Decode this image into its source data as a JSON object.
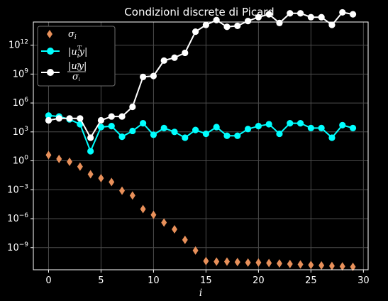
{
  "chart_data": {
    "type": "line",
    "title": "Condizioni discrete di Picard",
    "xlabel": "i",
    "ylabel": "",
    "y_scale": "log",
    "xlim": [
      -1.45,
      30.45
    ],
    "ylim_log10": [
      -11.3,
      14.4
    ],
    "grid": true,
    "legend_position": "top-left",
    "x_ticks": [
      0,
      5,
      10,
      15,
      20,
      25,
      30
    ],
    "y_ticks": [
      {
        "exp": 0,
        "label": "10^0"
      },
      {
        "exp": 3,
        "label": "10^3"
      },
      {
        "exp": 6,
        "label": "10^6"
      },
      {
        "exp": 9,
        "label": "10^9"
      },
      {
        "exp": 12,
        "label": "10^12"
      },
      {
        "exp": -3,
        "label": "10^-3"
      },
      {
        "exp": -6,
        "label": "10^-6"
      },
      {
        "exp": -9,
        "label": "10^-9"
      }
    ],
    "x": [
      0,
      1,
      2,
      3,
      4,
      5,
      6,
      7,
      8,
      9,
      10,
      11,
      12,
      13,
      14,
      15,
      16,
      17,
      18,
      19,
      20,
      21,
      22,
      23,
      24,
      25,
      26,
      27,
      28,
      29
    ],
    "series": [
      {
        "name": "σ_i",
        "marker": "diamond",
        "line": false,
        "color": "#e8905a",
        "log10_values": [
          0.6,
          0.2,
          -0.1,
          -0.6,
          -1.4,
          -1.8,
          -2.2,
          -3.1,
          -3.6,
          -5.0,
          -5.6,
          -6.4,
          -7.1,
          -8.2,
          -9.3,
          -10.4,
          -10.45,
          -10.45,
          -10.5,
          -10.55,
          -10.55,
          -10.6,
          -10.65,
          -10.7,
          -10.75,
          -10.8,
          -10.85,
          -10.9,
          -10.95,
          -11.0
        ]
      },
      {
        "name": "|u_i^T y|",
        "marker": "circle",
        "line": true,
        "color": "#00ffff",
        "log10_values": [
          4.7,
          4.6,
          4.3,
          3.8,
          1.0,
          3.5,
          3.6,
          2.5,
          3.1,
          3.9,
          2.7,
          3.4,
          3.0,
          2.4,
          3.2,
          2.8,
          3.5,
          2.6,
          2.6,
          3.3,
          3.6,
          3.8,
          2.8,
          3.9,
          3.9,
          3.4,
          3.4,
          2.4,
          3.7,
          3.4
        ]
      },
      {
        "name": "|u_i^T y| / σ_i",
        "marker": "circle",
        "line": true,
        "color": "#ffffff",
        "log10_values": [
          4.2,
          4.4,
          4.4,
          4.4,
          2.4,
          4.2,
          4.6,
          4.6,
          5.6,
          8.7,
          8.8,
          10.4,
          10.7,
          11.2,
          13.4,
          14.1,
          14.6,
          13.9,
          14.0,
          14.5,
          14.9,
          15.2,
          14.3,
          15.3,
          15.3,
          14.9,
          14.9,
          14.1,
          15.4,
          15.2
        ]
      }
    ]
  }
}
